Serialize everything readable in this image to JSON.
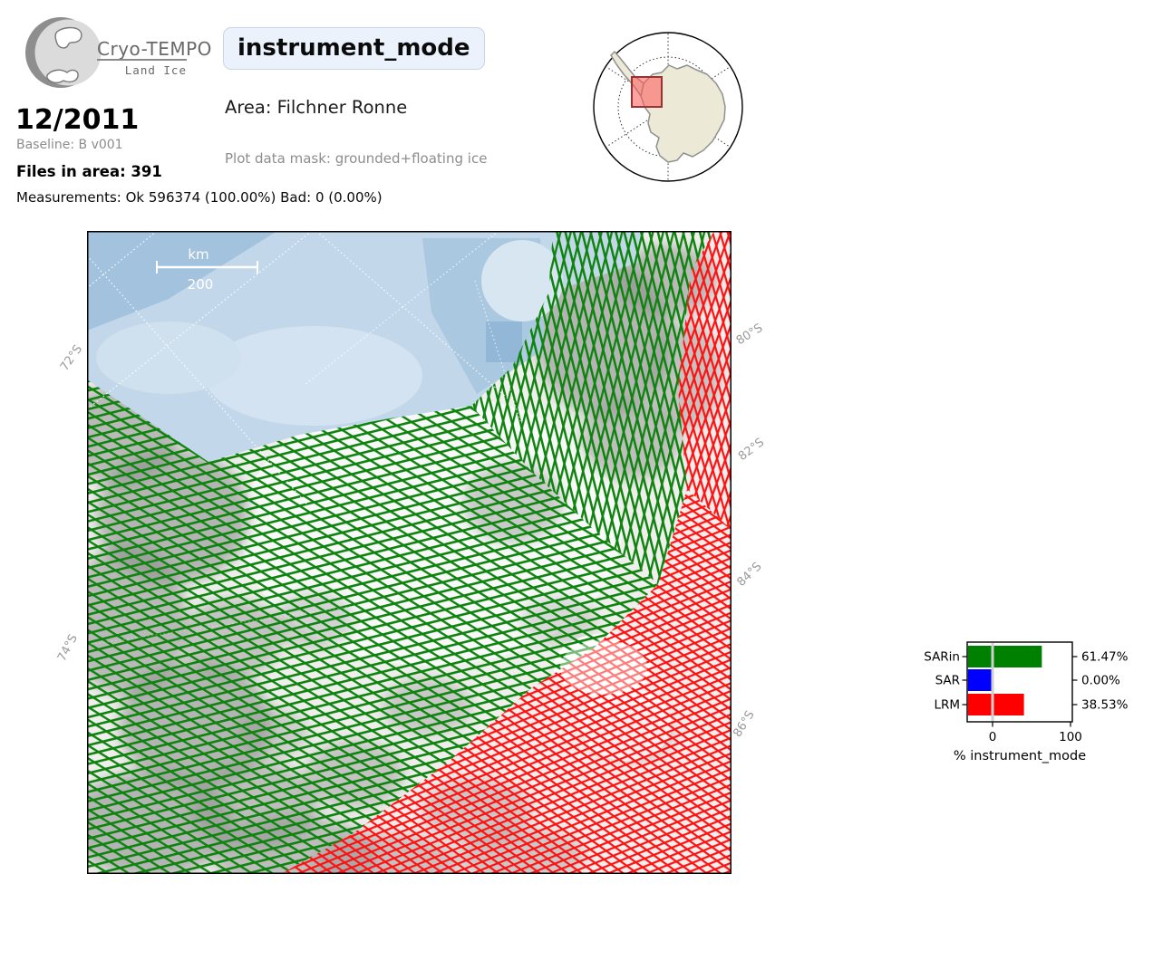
{
  "header": {
    "brand": "Cryo-TEMPO",
    "product": "Land Ice",
    "title": "instrument_mode",
    "area": "Area: Filchner Ronne",
    "plot_mask": "Plot data mask: grounded+floating ice",
    "date": "12/2011",
    "baseline": "Baseline: B v001",
    "files_in_area": "Files in area: 391",
    "measurements": "Measurements: Ok 596374 (100.00%) Bad: 0 (0.00%)"
  },
  "map": {
    "scalebar": {
      "unit": "km",
      "value": "200"
    },
    "lat_left": [
      "72°S",
      "74°S"
    ],
    "lat_right": [
      "80°S",
      "82°S",
      "84°S",
      "86°S"
    ],
    "track_colors": {
      "sarin_green": "#0e830e",
      "sar_blue": "#0000ff",
      "lrm_red": "#ff1111"
    },
    "ocean_color": "#c2d8ea"
  },
  "inset": {
    "region_color": "#ff5555"
  },
  "chart_data": {
    "type": "bar",
    "orientation": "horizontal",
    "categories": [
      "SARin",
      "SAR",
      "LRM"
    ],
    "values": [
      61.47,
      0.0,
      38.53
    ],
    "value_labels": [
      "61.47%",
      "0.00%",
      "38.53%"
    ],
    "colors": [
      "#008000",
      "#0000ff",
      "#ff0000"
    ],
    "xlabel": "% instrument_mode",
    "xlim": [
      0,
      100
    ],
    "xticks": [
      0,
      100
    ],
    "xtick_labels": [
      "0",
      "100"
    ],
    "grid": false,
    "legend_position": "none"
  }
}
